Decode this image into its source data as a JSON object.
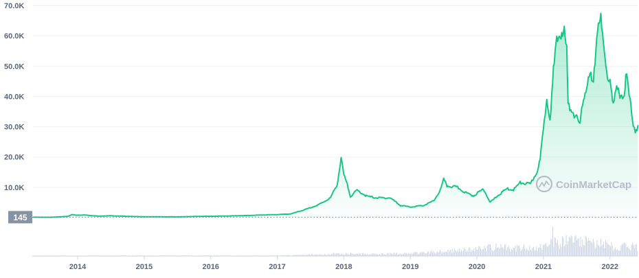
{
  "watermark": "CoinMarketCap",
  "colors": {
    "line": "#16c784",
    "area_top": "#16c784",
    "grid": "#eff2f5",
    "axis_text": "#58667e",
    "volume": "#cfd6e4",
    "badge_bg": "#8792a5",
    "badge_text": "#ffffff",
    "watermark": "#b7bdc6"
  },
  "chart_data": {
    "type": "area",
    "title": "",
    "xlabel": "",
    "ylabel": "",
    "grid": true,
    "ylim": [
      0,
      70000
    ],
    "xlim": [
      2013.33,
      2022.42
    ],
    "y_ticks": [
      10000,
      20000,
      30000,
      40000,
      50000,
      60000,
      70000
    ],
    "y_tick_labels": [
      "10.0K",
      "20.0K",
      "30.0K",
      "40.0K",
      "50.0K",
      "60.0K",
      "70.0K"
    ],
    "x_ticks": [
      2014,
      2015,
      2016,
      2017,
      2018,
      2019,
      2020,
      2021,
      2022
    ],
    "x_tick_labels": [
      "2014",
      "2015",
      "2016",
      "2017",
      "2018",
      "2019",
      "2020",
      "2021",
      "2022"
    ],
    "reference_line": {
      "value": 145,
      "label": "145"
    },
    "series": [
      {
        "values": [
          [
            2013.33,
            140
          ],
          [
            2013.6,
            100
          ],
          [
            2013.85,
            400
          ],
          [
            2013.92,
            1000
          ],
          [
            2013.97,
            800
          ],
          [
            2014.1,
            850
          ],
          [
            2014.3,
            500
          ],
          [
            2014.5,
            600
          ],
          [
            2014.8,
            380
          ],
          [
            2015.0,
            280
          ],
          [
            2015.5,
            250
          ],
          [
            2015.9,
            430
          ],
          [
            2016.0,
            420
          ],
          [
            2016.5,
            650
          ],
          [
            2016.9,
            950
          ],
          [
            2017.0,
            1000
          ],
          [
            2017.2,
            1200
          ],
          [
            2017.4,
            2500
          ],
          [
            2017.6,
            4000
          ],
          [
            2017.8,
            6500
          ],
          [
            2017.9,
            11000
          ],
          [
            2017.96,
            19500
          ],
          [
            2018.0,
            14000
          ],
          [
            2018.05,
            11000
          ],
          [
            2018.1,
            7000
          ],
          [
            2018.2,
            9000
          ],
          [
            2018.35,
            7000
          ],
          [
            2018.5,
            6500
          ],
          [
            2018.7,
            6500
          ],
          [
            2018.85,
            4000
          ],
          [
            2019.0,
            3500
          ],
          [
            2019.2,
            4000
          ],
          [
            2019.35,
            5500
          ],
          [
            2019.45,
            9000
          ],
          [
            2019.5,
            12500
          ],
          [
            2019.55,
            10500
          ],
          [
            2019.7,
            10000
          ],
          [
            2019.85,
            8000
          ],
          [
            2019.95,
            7200
          ],
          [
            2020.1,
            9500
          ],
          [
            2020.2,
            5000
          ],
          [
            2020.3,
            7000
          ],
          [
            2020.45,
            9500
          ],
          [
            2020.55,
            9200
          ],
          [
            2020.65,
            11500
          ],
          [
            2020.8,
            11000
          ],
          [
            2020.9,
            15000
          ],
          [
            2020.95,
            19000
          ],
          [
            2021.0,
            29000
          ],
          [
            2021.05,
            40000
          ],
          [
            2021.1,
            33000
          ],
          [
            2021.15,
            48000
          ],
          [
            2021.2,
            58000
          ],
          [
            2021.3,
            63000
          ],
          [
            2021.35,
            55000
          ],
          [
            2021.37,
            37000
          ],
          [
            2021.45,
            35000
          ],
          [
            2021.55,
            30000
          ],
          [
            2021.6,
            40000
          ],
          [
            2021.7,
            47000
          ],
          [
            2021.75,
            43000
          ],
          [
            2021.8,
            61000
          ],
          [
            2021.85,
            67500
          ],
          [
            2021.9,
            57000
          ],
          [
            2021.95,
            47000
          ],
          [
            2022.0,
            46000
          ],
          [
            2022.05,
            37000
          ],
          [
            2022.1,
            42000
          ],
          [
            2022.2,
            40000
          ],
          [
            2022.25,
            47000
          ],
          [
            2022.3,
            38000
          ],
          [
            2022.35,
            31000
          ],
          [
            2022.38,
            29000
          ],
          [
            2022.42,
            30500
          ]
        ]
      }
    ],
    "volume": [
      [
        2013.33,
        0.02
      ],
      [
        2016.9,
        0.02
      ],
      [
        2017.5,
        0.05
      ],
      [
        2017.95,
        0.1
      ],
      [
        2018.5,
        0.08
      ],
      [
        2019.0,
        0.1
      ],
      [
        2019.5,
        0.2
      ],
      [
        2020.0,
        0.25
      ],
      [
        2020.2,
        0.35
      ],
      [
        2020.8,
        0.3
      ],
      [
        2021.1,
        0.45
      ],
      [
        2021.13,
        1.0
      ],
      [
        2021.16,
        0.5
      ],
      [
        2021.4,
        0.6
      ],
      [
        2021.8,
        0.5
      ],
      [
        2022.0,
        0.4
      ],
      [
        2022.42,
        0.35
      ]
    ]
  }
}
